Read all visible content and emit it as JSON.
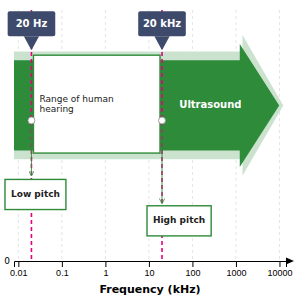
{
  "chart_data": {
    "type": "range",
    "xlabel": "Frequency (kHz)",
    "log": "x",
    "xlim": [
      0.007943282347242816,
      14125.375446227554
    ],
    "xticks": [
      0.01,
      0.1,
      1,
      10,
      100,
      1000,
      10000
    ],
    "grid": true,
    "tick_labels": "x",
    "values": [
      0.02,
      20
    ],
    "value_labels": [
      "20 Hz",
      "20 kHz"
    ],
    "colors": [
      "#e6007e",
      "#e6007e"
    ],
    "color": "#2e8b3a",
    "annotations": [
      {
        "text": "Range of human\nhearing"
      },
      {
        "text": "Ultrasound"
      },
      {
        "text": "Low pitch"
      },
      {
        "text": "High pitch"
      },
      {
        "text": "0"
      }
    ]
  }
}
